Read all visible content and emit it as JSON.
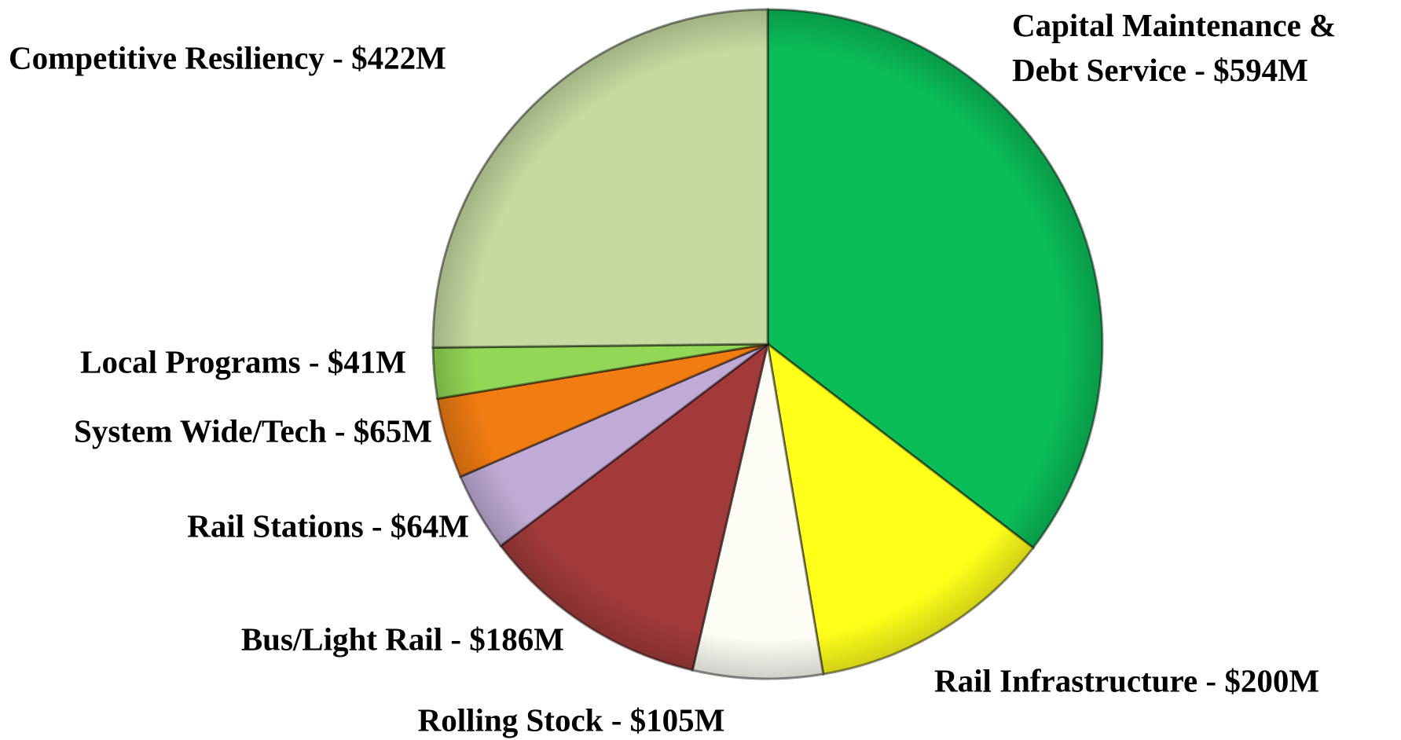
{
  "chart_data": {
    "type": "pie",
    "categories": [
      "Capital Maintenance & Debt Service - $594M",
      "Rail Infrastructure - $200M",
      "Rolling Stock - $105M",
      "Bus/Light Rail - $186M",
      "Rail Stations - $64M",
      "System Wide/Tech - $65M",
      "Local Programs - $41M",
      "Competitive Resiliency - $422M"
    ],
    "values": [
      594,
      200,
      105,
      186,
      64,
      65,
      41,
      422
    ],
    "colors": [
      "#0bbd58",
      "#ffff1a",
      "#fdfdf5",
      "#a23a3a",
      "#c0abd6",
      "#f07c12",
      "#92d756",
      "#c5d9a0"
    ]
  }
}
